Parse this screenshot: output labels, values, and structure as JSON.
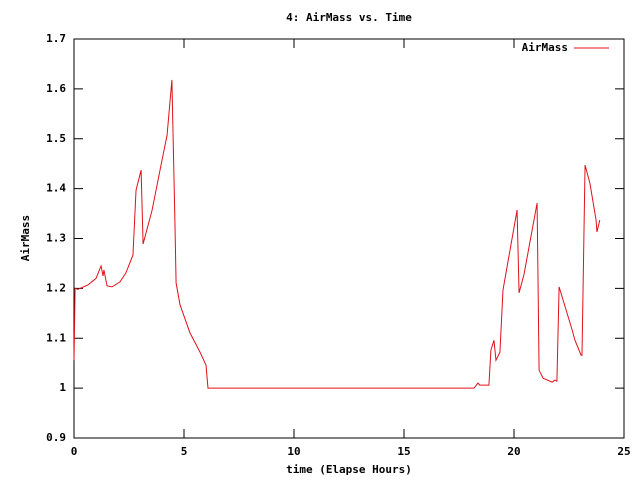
{
  "chart_data": {
    "type": "line",
    "title": "4: AirMass vs. Time",
    "x_label": "time (Elapse Hours)",
    "y_label": "AirMass",
    "x": [
      0,
      0.05,
      0.18,
      0.64,
      1.0,
      1.23,
      1.32,
      1.36,
      1.5,
      1.73,
      2.09,
      2.36,
      2.68,
      2.82,
      3.05,
      3.14,
      3.55,
      4.0,
      4.23,
      4.45,
      4.59,
      4.64,
      4.82,
      5.27,
      5.73,
      6.0,
      6.09,
      18.18,
      18.36,
      18.45,
      18.86,
      18.95,
      19.09,
      19.18,
      19.36,
      19.5,
      20.14,
      20.23,
      20.45,
      21.05,
      21.14,
      21.32,
      21.73,
      21.86,
      21.95,
      22.05,
      22.64,
      22.77,
      23.05,
      23.09,
      23.23,
      23.45,
      23.73,
      23.77,
      23.9
    ],
    "series": [
      {
        "name": "AirMass",
        "color": "#e0101a",
        "values": [
          1.056,
          1.2,
          1.198,
          1.207,
          1.22,
          1.245,
          1.225,
          1.237,
          1.205,
          1.203,
          1.213,
          1.231,
          1.267,
          1.397,
          1.437,
          1.289,
          1.357,
          1.457,
          1.507,
          1.618,
          1.327,
          1.211,
          1.167,
          1.111,
          1.072,
          1.046,
          1.0,
          1.0,
          1.01,
          1.006,
          1.006,
          1.076,
          1.096,
          1.056,
          1.072,
          1.197,
          1.357,
          1.191,
          1.227,
          1.371,
          1.036,
          1.02,
          1.012,
          1.016,
          1.014,
          1.203,
          1.117,
          1.096,
          1.066,
          1.066,
          1.447,
          1.411,
          1.337,
          1.313,
          1.337
        ]
      }
    ],
    "xlim": [
      0,
      25
    ],
    "xticks": [
      0,
      5,
      10,
      15,
      20,
      25
    ],
    "ylim": [
      0.9,
      1.7
    ],
    "yticks": [
      0.9,
      1,
      1.1,
      1.2,
      1.3,
      1.4,
      1.5,
      1.6,
      1.7
    ],
    "legend": "top-right"
  }
}
